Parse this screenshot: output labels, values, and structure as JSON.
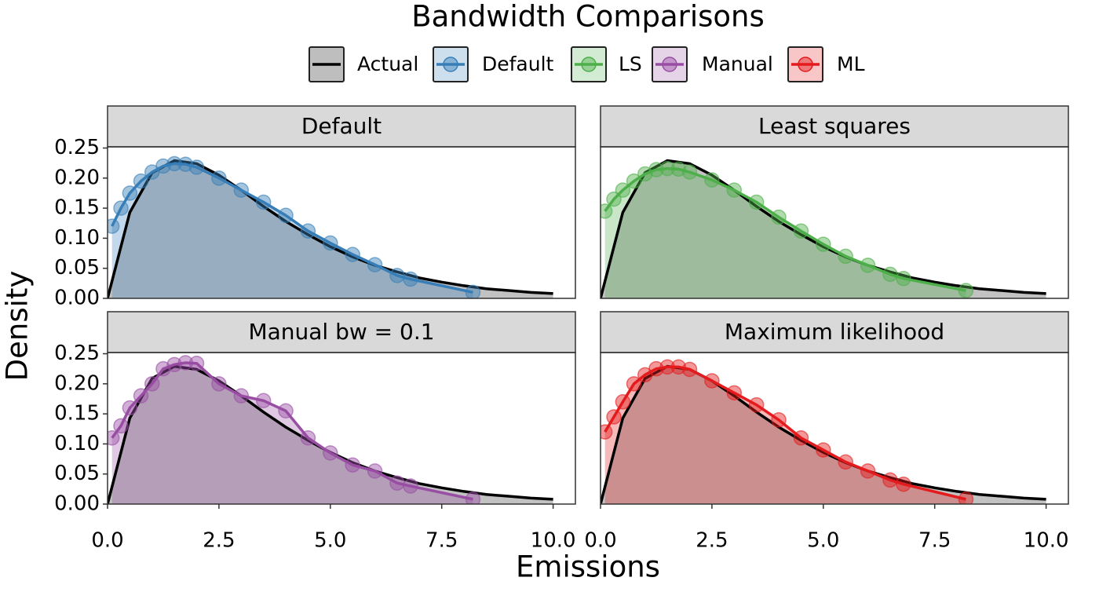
{
  "title": "Bandwidth Comparisons",
  "x_label": "Emissions",
  "y_label": "Density",
  "legend": "top",
  "chart_data": [
    {
      "type": "line",
      "title": "Default",
      "xlim": [
        0,
        10.5
      ],
      "ylim": [
        0,
        0.252
      ],
      "yticks": [
        {
          "value": 0,
          "label": "0.00"
        },
        {
          "value": 0.05,
          "label": "0.05"
        },
        {
          "value": 0.1,
          "label": "0.10"
        },
        {
          "value": 0.15,
          "label": "0.15"
        },
        {
          "value": 0.2,
          "label": "0.20"
        },
        {
          "value": 0.25,
          "label": "0.25"
        }
      ],
      "series": [
        {
          "name": "Actual",
          "color": "#000000",
          "x": [
            0,
            0.5,
            1,
            1.5,
            2,
            2.5,
            3,
            3.5,
            4,
            4.5,
            5,
            5.5,
            6,
            6.5,
            7,
            7.5,
            8,
            8.5,
            9,
            9.5,
            10
          ],
          "values": [
            0,
            0.143,
            0.209,
            0.229,
            0.224,
            0.205,
            0.18,
            0.153,
            0.128,
            0.106,
            0.086,
            0.069,
            0.055,
            0.044,
            0.034,
            0.027,
            0.021,
            0.016,
            0.013,
            0.01,
            0.008
          ]
        },
        {
          "name": "Default",
          "color": "#377eb8",
          "x": [
            0.1,
            0.3,
            0.5,
            0.75,
            1,
            1.25,
            1.5,
            1.75,
            2,
            2.5,
            3,
            3.5,
            4,
            4.5,
            5,
            5.5,
            6,
            6.5,
            6.8,
            8.2
          ],
          "values": [
            0.12,
            0.15,
            0.175,
            0.195,
            0.21,
            0.22,
            0.224,
            0.223,
            0.218,
            0.2,
            0.18,
            0.16,
            0.138,
            0.112,
            0.092,
            0.073,
            0.056,
            0.038,
            0.032,
            0.01
          ]
        }
      ]
    },
    {
      "type": "line",
      "title": "Least squares",
      "xlim": [
        0,
        10.5
      ],
      "ylim": [
        0,
        0.252
      ],
      "series": [
        {
          "name": "Actual",
          "color": "#000000",
          "x": [
            0,
            0.5,
            1,
            1.5,
            2,
            2.5,
            3,
            3.5,
            4,
            4.5,
            5,
            5.5,
            6,
            6.5,
            7,
            7.5,
            8,
            8.5,
            9,
            9.5,
            10
          ],
          "values": [
            0,
            0.143,
            0.209,
            0.229,
            0.224,
            0.205,
            0.18,
            0.153,
            0.128,
            0.106,
            0.086,
            0.069,
            0.055,
            0.044,
            0.034,
            0.027,
            0.021,
            0.016,
            0.013,
            0.01,
            0.008
          ]
        },
        {
          "name": "LS",
          "color": "#4daf4a",
          "x": [
            0.1,
            0.3,
            0.5,
            0.75,
            1,
            1.25,
            1.5,
            1.75,
            2,
            2.5,
            3,
            3.5,
            4,
            4.5,
            5,
            5.5,
            6,
            6.5,
            6.8,
            8.2
          ],
          "values": [
            0.145,
            0.165,
            0.18,
            0.195,
            0.207,
            0.214,
            0.216,
            0.215,
            0.21,
            0.197,
            0.18,
            0.16,
            0.135,
            0.112,
            0.09,
            0.07,
            0.055,
            0.04,
            0.033,
            0.013
          ]
        }
      ]
    },
    {
      "type": "line",
      "title": "Manual bw = 0.1",
      "xlim": [
        0,
        10.5
      ],
      "ylim": [
        0,
        0.252
      ],
      "xticks": [
        {
          "value": 0,
          "label": "0.0"
        },
        2.5,
        {
          "value": 5,
          "label": "5.0"
        },
        7.5,
        {
          "value": 10,
          "label": "10.0"
        }
      ],
      "yticks": [
        {
          "value": 0,
          "label": "0.00"
        },
        {
          "value": 0.05,
          "label": "0.05"
        },
        {
          "value": 0.1,
          "label": "0.10"
        },
        {
          "value": 0.15,
          "label": "0.15"
        },
        {
          "value": 0.2,
          "label": "0.20"
        },
        {
          "value": 0.25,
          "label": "0.25"
        }
      ],
      "series": [
        {
          "name": "Actual",
          "color": "#000000",
          "x": [
            0,
            0.5,
            1,
            1.5,
            2,
            2.5,
            3,
            3.5,
            4,
            4.5,
            5,
            5.5,
            6,
            6.5,
            7,
            7.5,
            8,
            8.5,
            9,
            9.5,
            10
          ],
          "values": [
            0,
            0.143,
            0.209,
            0.229,
            0.224,
            0.205,
            0.18,
            0.153,
            0.128,
            0.106,
            0.086,
            0.069,
            0.055,
            0.044,
            0.034,
            0.027,
            0.021,
            0.016,
            0.013,
            0.01,
            0.008
          ]
        },
        {
          "name": "Manual",
          "color": "#984ea3",
          "x": [
            0.1,
            0.3,
            0.5,
            0.75,
            1,
            1.25,
            1.5,
            1.75,
            2,
            2.5,
            3,
            3.5,
            4,
            4.5,
            5,
            5.5,
            6,
            6.5,
            6.8,
            8.2
          ],
          "values": [
            0.11,
            0.13,
            0.16,
            0.18,
            0.2,
            0.225,
            0.232,
            0.235,
            0.234,
            0.2,
            0.18,
            0.172,
            0.155,
            0.11,
            0.085,
            0.065,
            0.055,
            0.035,
            0.03,
            0.008
          ]
        }
      ]
    },
    {
      "type": "line",
      "title": "Maximum likelihood",
      "xlim": [
        0,
        10.5
      ],
      "ylim": [
        0,
        0.252
      ],
      "xticks": [
        {
          "value": 0,
          "label": "0.0"
        },
        2.5,
        {
          "value": 5,
          "label": "5.0"
        },
        7.5,
        {
          "value": 10,
          "label": "10.0"
        }
      ],
      "series": [
        {
          "name": "Actual",
          "color": "#000000",
          "x": [
            0,
            0.5,
            1,
            1.5,
            2,
            2.5,
            3,
            3.5,
            4,
            4.5,
            5,
            5.5,
            6,
            6.5,
            7,
            7.5,
            8,
            8.5,
            9,
            9.5,
            10
          ],
          "values": [
            0,
            0.143,
            0.209,
            0.229,
            0.224,
            0.205,
            0.18,
            0.153,
            0.128,
            0.106,
            0.086,
            0.069,
            0.055,
            0.044,
            0.034,
            0.027,
            0.021,
            0.016,
            0.013,
            0.01,
            0.008
          ]
        },
        {
          "name": "ML",
          "color": "#e41a1c",
          "x": [
            0.1,
            0.3,
            0.5,
            0.75,
            1,
            1.25,
            1.5,
            1.75,
            2,
            2.5,
            3,
            3.5,
            4,
            4.5,
            5,
            5.5,
            6,
            6.5,
            6.8,
            8.2
          ],
          "values": [
            0.12,
            0.145,
            0.17,
            0.2,
            0.215,
            0.225,
            0.228,
            0.228,
            0.224,
            0.205,
            0.185,
            0.165,
            0.14,
            0.11,
            0.09,
            0.07,
            0.055,
            0.04,
            0.033,
            0.008
          ]
        }
      ]
    }
  ]
}
